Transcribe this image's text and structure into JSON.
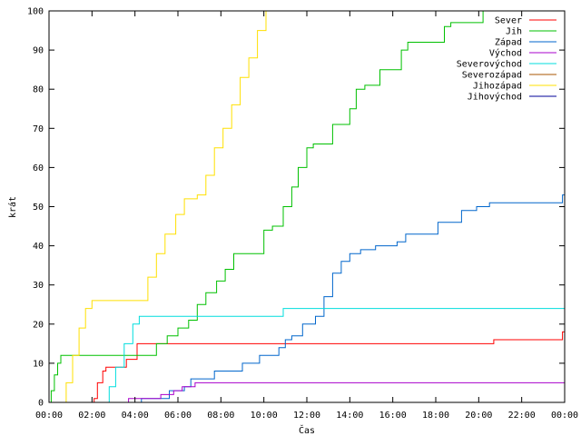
{
  "chart_data": {
    "type": "line",
    "title": "",
    "xlabel": "Čas",
    "ylabel": "krát",
    "xlim": [
      0,
      24
    ],
    "ylim": [
      0,
      100
    ],
    "grid": false,
    "legend_position": "top-right",
    "x_ticks": [
      {
        "value": 0,
        "label": "00:00"
      },
      {
        "value": 2,
        "label": "02:00"
      },
      {
        "value": 4,
        "label": "04:00"
      },
      {
        "value": 6,
        "label": "06:00"
      },
      {
        "value": 8,
        "label": "08:00"
      },
      {
        "value": 10,
        "label": "10:00"
      },
      {
        "value": 12,
        "label": "12:00"
      },
      {
        "value": 14,
        "label": "14:00"
      },
      {
        "value": 16,
        "label": "16:00"
      },
      {
        "value": 18,
        "label": "18:00"
      },
      {
        "value": 20,
        "label": "20:00"
      },
      {
        "value": 22,
        "label": "22:00"
      },
      {
        "value": 24,
        "label": "00:00"
      }
    ],
    "y_ticks": [
      {
        "value": 0,
        "label": "0"
      },
      {
        "value": 10,
        "label": "10"
      },
      {
        "value": 20,
        "label": "20"
      },
      {
        "value": 30,
        "label": "30"
      },
      {
        "value": 40,
        "label": "40"
      },
      {
        "value": 50,
        "label": "50"
      },
      {
        "value": 60,
        "label": "60"
      },
      {
        "value": 70,
        "label": "70"
      },
      {
        "value": 80,
        "label": "80"
      },
      {
        "value": 90,
        "label": "90"
      },
      {
        "value": 100,
        "label": "100"
      }
    ],
    "series": [
      {
        "name": "Sever",
        "color": "#ff0000",
        "points": [
          [
            2.08,
            0
          ],
          [
            2.1,
            1
          ],
          [
            2.25,
            5
          ],
          [
            2.5,
            8
          ],
          [
            2.65,
            9
          ],
          [
            3.5,
            9
          ],
          [
            3.6,
            11
          ],
          [
            3.9,
            11
          ],
          [
            4.1,
            15
          ],
          [
            20,
            15
          ],
          [
            20.7,
            16
          ],
          [
            23.7,
            16
          ],
          [
            23.9,
            18
          ],
          [
            24,
            18
          ]
        ]
      },
      {
        "name": "Jih",
        "color": "#00c000",
        "points": [
          [
            0,
            0
          ],
          [
            0.1,
            3
          ],
          [
            0.25,
            7
          ],
          [
            0.4,
            10
          ],
          [
            0.55,
            12
          ],
          [
            4.7,
            12
          ],
          [
            5.0,
            15
          ],
          [
            5.5,
            17
          ],
          [
            6.0,
            19
          ],
          [
            6.5,
            21
          ],
          [
            6.9,
            25
          ],
          [
            7.3,
            28
          ],
          [
            7.8,
            31
          ],
          [
            8.2,
            34
          ],
          [
            8.6,
            38
          ],
          [
            9.6,
            38
          ],
          [
            10.0,
            44
          ],
          [
            10.4,
            45
          ],
          [
            10.9,
            50
          ],
          [
            11.3,
            55
          ],
          [
            11.6,
            60
          ],
          [
            12.0,
            65
          ],
          [
            12.3,
            66
          ],
          [
            12.9,
            66
          ],
          [
            13.2,
            71
          ],
          [
            13.7,
            71
          ],
          [
            14.0,
            75
          ],
          [
            14.3,
            80
          ],
          [
            14.7,
            81
          ],
          [
            15.1,
            81
          ],
          [
            15.4,
            85
          ],
          [
            15.9,
            85
          ],
          [
            16.4,
            90
          ],
          [
            16.7,
            92
          ],
          [
            18.0,
            92
          ],
          [
            18.4,
            96
          ],
          [
            18.7,
            97
          ],
          [
            19.6,
            97
          ],
          [
            20.2,
            100
          ],
          [
            24,
            100
          ]
        ]
      },
      {
        "name": "Západ",
        "color": "#0066cc",
        "points": [
          [
            2.6,
            0
          ],
          [
            2.7,
            0
          ],
          [
            4.2,
            0
          ],
          [
            4.3,
            1
          ],
          [
            5.5,
            1
          ],
          [
            5.6,
            3
          ],
          [
            6.3,
            4
          ],
          [
            6.6,
            6
          ],
          [
            7.5,
            6
          ],
          [
            7.7,
            8
          ],
          [
            8.9,
            8
          ],
          [
            9.0,
            10
          ],
          [
            9.8,
            12
          ],
          [
            10.2,
            12
          ],
          [
            10.7,
            14
          ],
          [
            11.0,
            16
          ],
          [
            11.3,
            17
          ],
          [
            11.8,
            20
          ],
          [
            12.4,
            22
          ],
          [
            12.8,
            27
          ],
          [
            13.2,
            33
          ],
          [
            13.6,
            36
          ],
          [
            14.0,
            38
          ],
          [
            14.5,
            39
          ],
          [
            15.2,
            40
          ],
          [
            16.2,
            41
          ],
          [
            16.6,
            43
          ],
          [
            17.8,
            43
          ],
          [
            18.1,
            46
          ],
          [
            18.7,
            46
          ],
          [
            19.2,
            49
          ],
          [
            19.9,
            50
          ],
          [
            20.5,
            51
          ],
          [
            23.8,
            51
          ],
          [
            23.9,
            53
          ],
          [
            24,
            53
          ]
        ]
      },
      {
        "name": "Východ",
        "color": "#aa00cc",
        "points": [
          [
            3.6,
            0
          ],
          [
            3.7,
            1
          ],
          [
            5.0,
            1
          ],
          [
            5.2,
            2
          ],
          [
            5.8,
            3
          ],
          [
            6.2,
            4
          ],
          [
            6.8,
            5
          ],
          [
            24,
            5
          ]
        ]
      },
      {
        "name": "Severovýchod",
        "color": "#00dddd",
        "points": [
          [
            2.6,
            0
          ],
          [
            2.8,
            4
          ],
          [
            3.1,
            9
          ],
          [
            3.5,
            15
          ],
          [
            3.9,
            20
          ],
          [
            4.2,
            22
          ],
          [
            10.8,
            22
          ],
          [
            10.9,
            24
          ],
          [
            24,
            24
          ]
        ]
      },
      {
        "name": "Severozápad",
        "color": "#aa5500",
        "points": []
      },
      {
        "name": "Jihozápad",
        "color": "#ffe000",
        "points": [
          [
            0.65,
            0
          ],
          [
            0.8,
            5
          ],
          [
            1.1,
            12
          ],
          [
            1.4,
            19
          ],
          [
            1.7,
            24
          ],
          [
            2.0,
            26
          ],
          [
            4.3,
            26
          ],
          [
            4.6,
            32
          ],
          [
            5.0,
            38
          ],
          [
            5.4,
            43
          ],
          [
            5.9,
            48
          ],
          [
            6.3,
            52
          ],
          [
            6.9,
            53
          ],
          [
            7.3,
            58
          ],
          [
            7.7,
            65
          ],
          [
            8.1,
            70
          ],
          [
            8.5,
            76
          ],
          [
            8.9,
            83
          ],
          [
            9.3,
            88
          ],
          [
            9.7,
            95
          ],
          [
            10.1,
            100
          ],
          [
            10.4,
            100
          ]
        ]
      },
      {
        "name": "Jihovýchod",
        "color": "#000099",
        "points": []
      }
    ]
  }
}
